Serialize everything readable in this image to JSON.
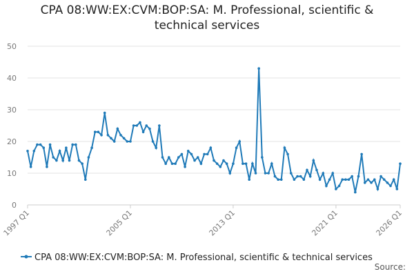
{
  "chart_data": {
    "type": "line",
    "title": "CPA 08:WW:EX:CVM:BOP:SA: M. Professional, scientific & technical services",
    "categories": [
      "1997 Q1",
      null,
      null,
      null,
      null,
      null,
      null,
      null,
      null,
      null,
      null,
      null,
      null,
      null,
      null,
      null,
      null,
      null,
      null,
      null,
      null,
      null,
      null,
      null,
      null,
      null,
      null,
      null,
      null,
      null,
      null,
      null,
      "2005 Q1",
      null,
      null,
      null,
      null,
      null,
      null,
      null,
      null,
      null,
      null,
      null,
      null,
      null,
      null,
      null,
      null,
      null,
      null,
      null,
      null,
      null,
      null,
      null,
      null,
      null,
      null,
      null,
      null,
      null,
      null,
      null,
      "2013 Q1",
      null,
      null,
      null,
      null,
      null,
      null,
      null,
      null,
      null,
      null,
      null,
      null,
      null,
      null,
      null,
      null,
      null,
      null,
      null,
      null,
      null,
      null,
      null,
      null,
      null,
      null,
      null,
      null,
      null,
      null,
      null,
      "2021 Q1",
      null,
      null,
      null,
      null,
      null,
      null,
      null,
      null,
      null,
      null,
      null,
      null,
      null,
      null,
      null,
      null,
      null,
      null,
      null,
      "2026 Q1"
    ],
    "series": [
      {
        "name": "CPA 08:WW:EX:CVM:BOP:SA: M. Professional, scientific & technical services",
        "color": "#1f7ab8",
        "values": [
          17,
          12,
          17,
          19,
          19,
          18,
          12,
          19,
          15,
          14,
          17,
          14,
          18,
          14,
          19,
          19,
          14,
          13,
          8,
          15,
          18,
          23,
          23,
          22,
          29,
          22,
          21,
          20,
          24,
          22,
          21,
          20,
          20,
          25,
          25,
          26,
          23,
          25,
          24,
          20,
          18,
          25,
          15,
          13,
          15,
          13,
          13,
          15,
          16,
          12,
          17,
          16,
          14,
          15,
          13,
          16,
          16,
          18,
          14,
          13,
          12,
          14,
          13,
          10,
          13,
          18,
          20,
          13,
          13,
          8,
          13,
          10,
          43,
          15,
          10,
          10,
          13,
          9,
          8,
          8,
          18,
          16,
          10,
          8,
          9,
          9,
          8,
          11,
          9,
          14,
          11,
          8,
          10,
          6,
          8,
          10,
          5,
          6,
          8,
          8,
          8,
          9,
          4,
          9,
          16,
          7,
          8,
          7,
          8,
          5,
          9,
          8,
          7,
          6,
          8,
          5,
          13
        ]
      }
    ],
    "ylim": [
      0,
      50
    ],
    "yticks": [
      0,
      10,
      20,
      30,
      40,
      50
    ],
    "grid": true,
    "source": "Source:"
  }
}
